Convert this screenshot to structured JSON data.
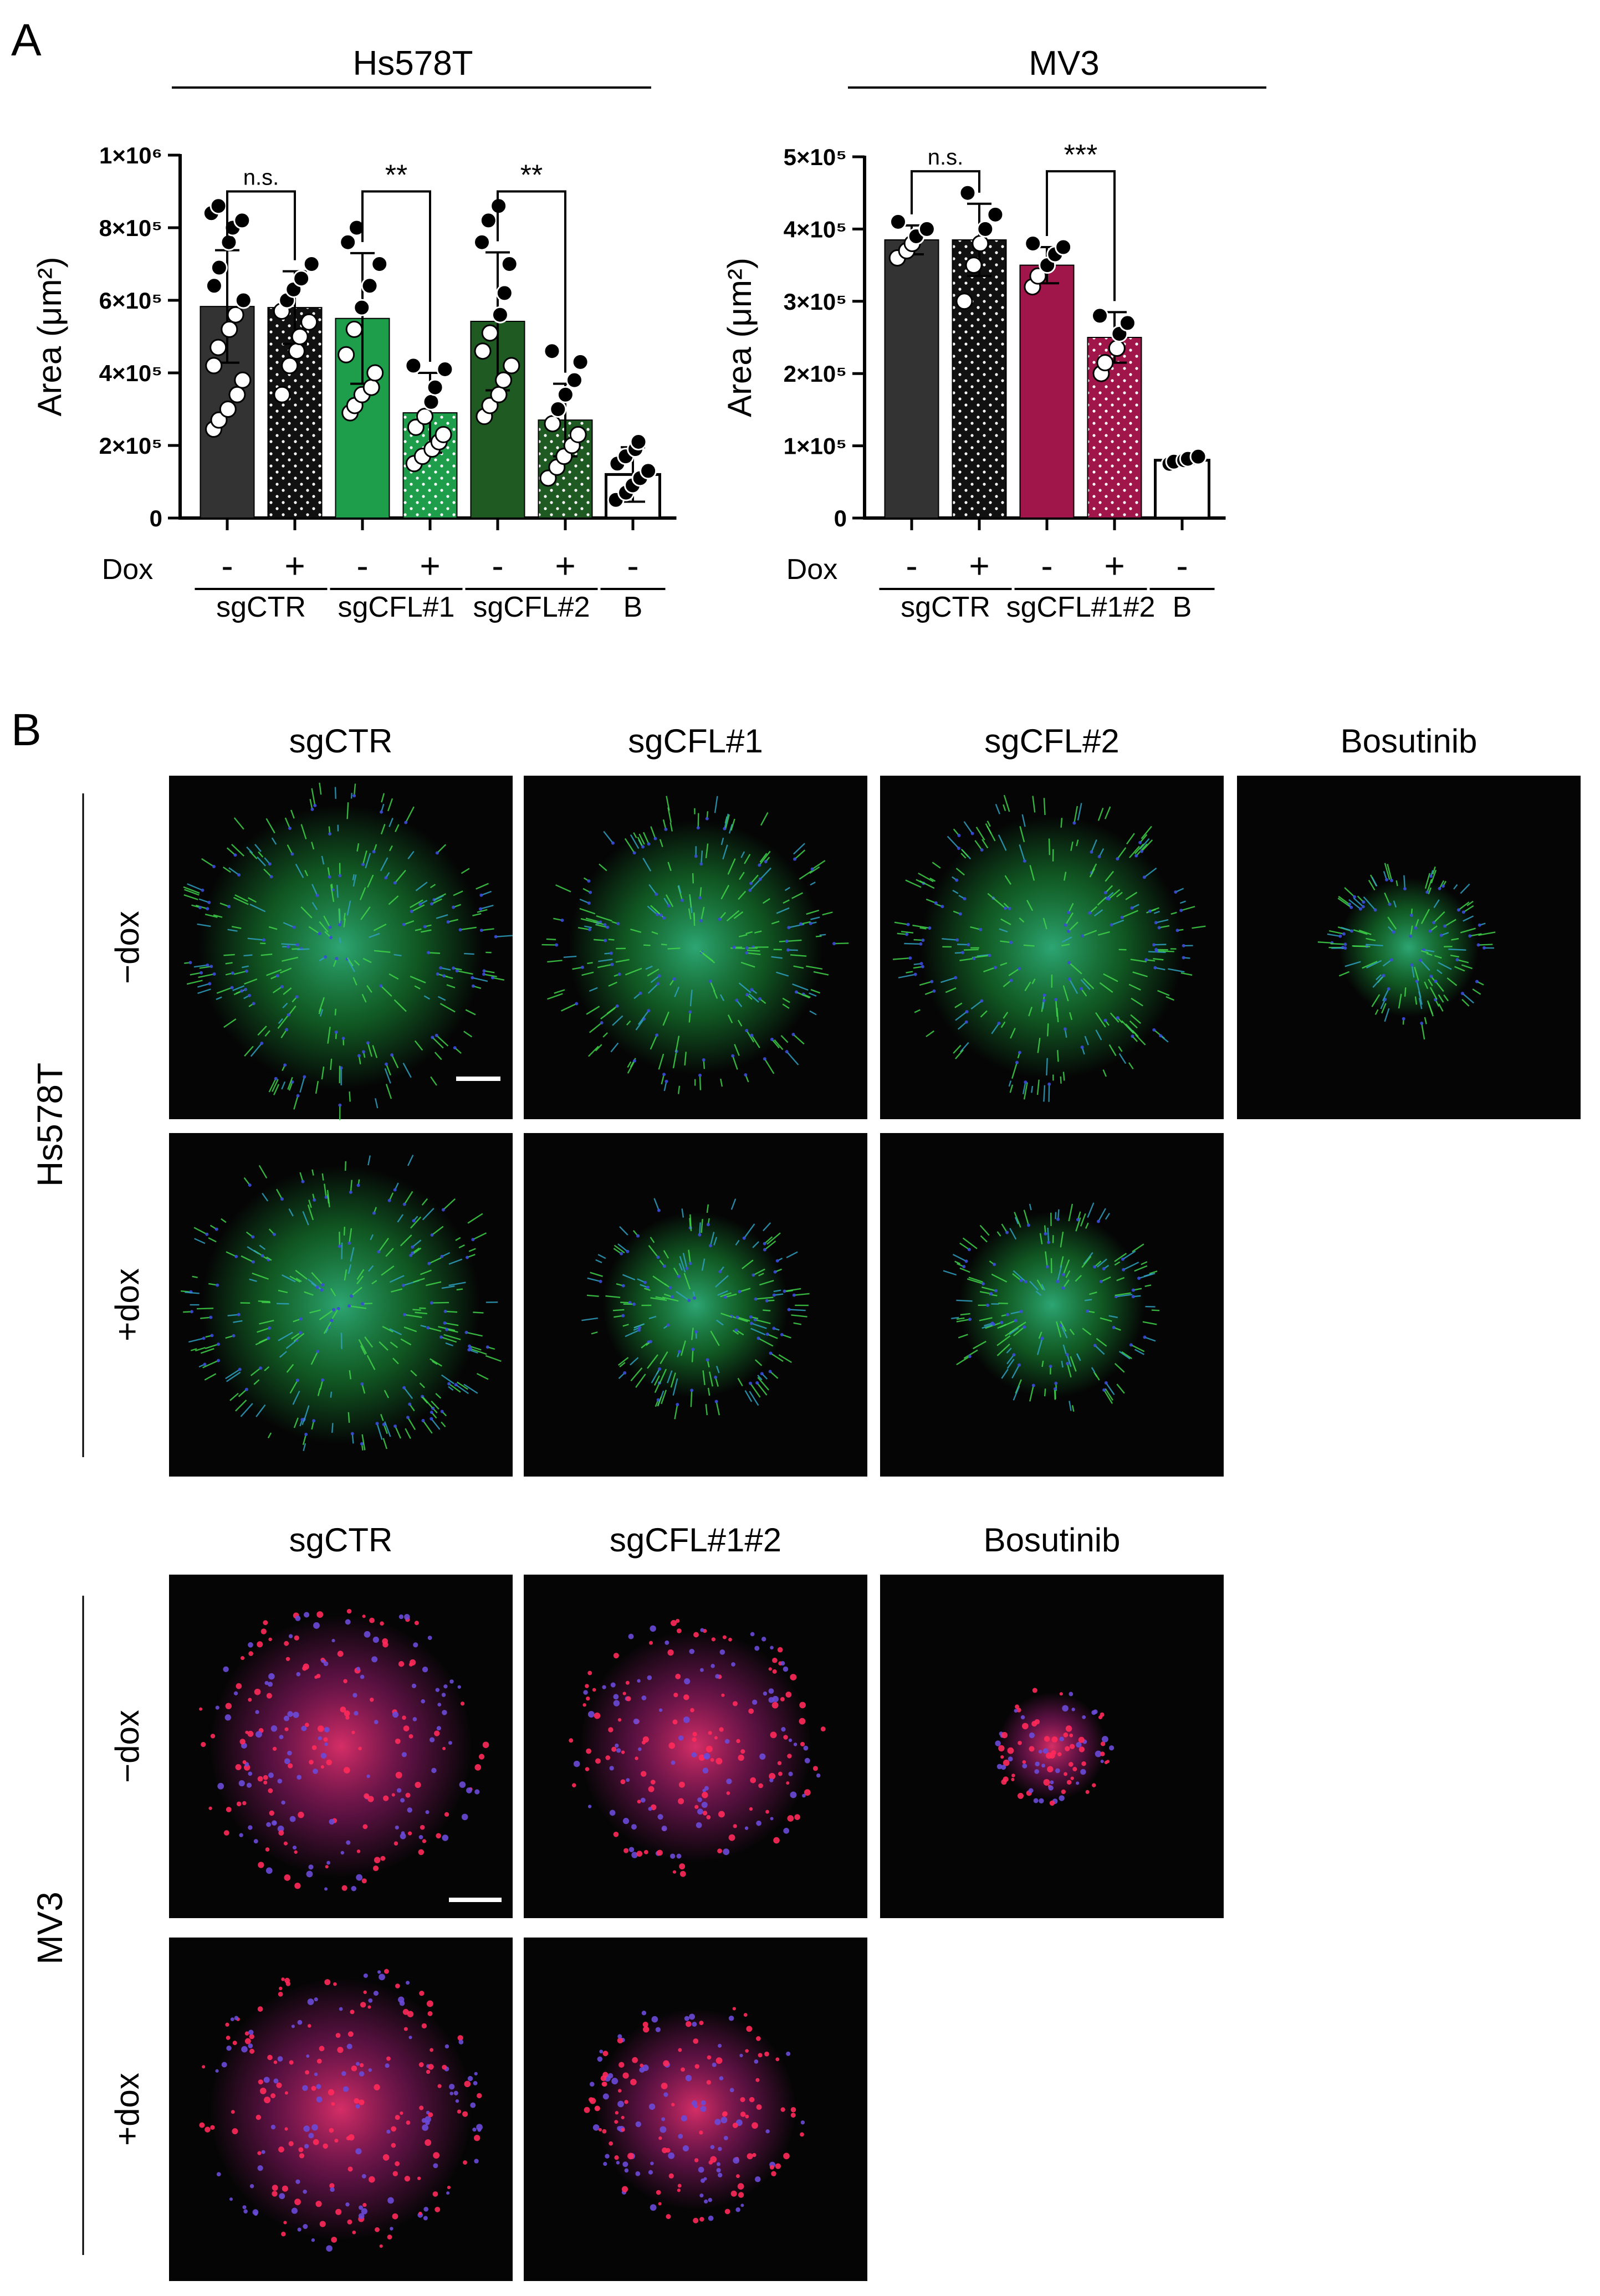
{
  "panel_labels": {
    "a": "A",
    "b": "B"
  },
  "chart_data": [
    {
      "type": "bar",
      "title": "Hs578T",
      "ylabel": "Area (μm²)",
      "ylim": [
        0,
        1000000
      ],
      "yticks": [
        {
          "value": 0,
          "label": "0"
        },
        {
          "value": 200000,
          "label": "2×10⁵"
        },
        {
          "value": 400000,
          "label": "4×10⁵"
        },
        {
          "value": 600000,
          "label": "6×10⁵"
        },
        {
          "value": 800000,
          "label": "8×10⁵"
        },
        {
          "value": 1000000,
          "label": "1×10⁶"
        }
      ],
      "dox_label": "Dox",
      "categories": [
        {
          "dox": "-",
          "group": "sgCTR",
          "value": 583000,
          "sd": 155000,
          "color": "#333333",
          "pattern": "solid",
          "points": [
            245000,
            270000,
            300000,
            340000,
            380000,
            420000,
            470000,
            520000,
            560000,
            600000,
            640000,
            690000,
            760000,
            800000,
            820000,
            840000,
            860000
          ]
        },
        {
          "dox": "+",
          "group": "sgCTR",
          "value": 580000,
          "sd": 100000,
          "color": "#111111",
          "pattern": "dots",
          "points": [
            340000,
            420000,
            460000,
            500000,
            540000,
            570000,
            600000,
            630000,
            660000,
            700000
          ]
        },
        {
          "dox": "-",
          "group": "sgCFL#1",
          "value": 550000,
          "sd": 180000,
          "color": "#1e9e4a",
          "pattern": "solid",
          "points": [
            290000,
            310000,
            340000,
            360000,
            400000,
            450000,
            520000,
            580000,
            640000,
            700000,
            760000,
            800000
          ]
        },
        {
          "dox": "+",
          "group": "sgCFL#1",
          "value": 290000,
          "sd": 110000,
          "color": "#1e9e4a",
          "pattern": "dots",
          "points": [
            150000,
            170000,
            190000,
            210000,
            230000,
            250000,
            280000,
            320000,
            360000,
            410000,
            420000
          ]
        },
        {
          "dox": "-",
          "group": "sgCFL#2",
          "value": 542000,
          "sd": 190000,
          "color": "#1f5a22",
          "pattern": "solid",
          "points": [
            280000,
            310000,
            340000,
            380000,
            420000,
            460000,
            510000,
            560000,
            620000,
            700000,
            760000,
            820000,
            860000
          ]
        },
        {
          "dox": "+",
          "group": "sgCFL#2",
          "value": 270000,
          "sd": 100000,
          "color": "#1f5a22",
          "pattern": "dots",
          "points": [
            110000,
            140000,
            170000,
            200000,
            230000,
            260000,
            300000,
            340000,
            380000,
            430000,
            460000
          ]
        },
        {
          "dox": "-",
          "group": "B",
          "value": 120000,
          "sd": 75000,
          "color": "#ffffff",
          "pattern": "open",
          "points": [
            50000,
            70000,
            90000,
            110000,
            130000,
            150000,
            170000,
            190000,
            210000
          ]
        }
      ],
      "groups": [
        {
          "label": "sgCTR",
          "from": 0,
          "to": 1
        },
        {
          "label": "sgCFL#1",
          "from": 2,
          "to": 3
        },
        {
          "label": "sgCFL#2",
          "from": 4,
          "to": 5
        },
        {
          "label": "B",
          "from": 6,
          "to": 6
        }
      ],
      "significance": [
        {
          "from": 0,
          "to": 1,
          "label": "n.s.",
          "y": 900000
        },
        {
          "from": 2,
          "to": 3,
          "label": "**",
          "y": 900000
        },
        {
          "from": 4,
          "to": 5,
          "label": "**",
          "y": 900000
        }
      ]
    },
    {
      "type": "bar",
      "title": "MV3",
      "ylabel": "Area (μm²)",
      "ylim": [
        0,
        500000
      ],
      "yticks": [
        {
          "value": 0,
          "label": "0"
        },
        {
          "value": 100000,
          "label": "1×10⁵"
        },
        {
          "value": 200000,
          "label": "2×10⁵"
        },
        {
          "value": 300000,
          "label": "3×10⁵"
        },
        {
          "value": 400000,
          "label": "4×10⁵"
        },
        {
          "value": 500000,
          "label": "5×10⁵"
        }
      ],
      "dox_label": "Dox",
      "categories": [
        {
          "dox": "-",
          "group": "sgCTR",
          "value": 385000,
          "sd": 20000,
          "color": "#333333",
          "pattern": "solid",
          "points": [
            360000,
            370000,
            380000,
            390000,
            400000,
            410000
          ]
        },
        {
          "dox": "+",
          "group": "sgCTR",
          "value": 385000,
          "sd": 50000,
          "color": "#111111",
          "pattern": "dots",
          "points": [
            300000,
            350000,
            380000,
            400000,
            420000,
            450000
          ]
        },
        {
          "dox": "-",
          "group": "sgCFL#1#2",
          "value": 350000,
          "sd": 25000,
          "color": "#a0154a",
          "pattern": "solid",
          "points": [
            320000,
            335000,
            350000,
            365000,
            375000,
            380000
          ]
        },
        {
          "dox": "+",
          "group": "sgCFL#1#2",
          "value": 250000,
          "sd": 35000,
          "color": "#a0154a",
          "pattern": "dots",
          "points": [
            200000,
            215000,
            235000,
            255000,
            270000,
            280000
          ]
        },
        {
          "dox": "-",
          "group": "B",
          "value": 80000,
          "sd": 5000,
          "color": "#ffffff",
          "pattern": "open",
          "points": [
            75000,
            78000,
            80000,
            82000,
            85000
          ]
        }
      ],
      "groups": [
        {
          "label": "sgCTR",
          "from": 0,
          "to": 1
        },
        {
          "label": "sgCFL#1#2",
          "from": 2,
          "to": 3
        },
        {
          "label": "B",
          "from": 4,
          "to": 4
        }
      ],
      "significance": [
        {
          "from": 0,
          "to": 1,
          "label": "n.s.",
          "y": 480000
        },
        {
          "from": 2,
          "to": 3,
          "label": "***",
          "y": 480000
        }
      ]
    }
  ],
  "panel_b": {
    "hs578t": {
      "cell_line": "Hs578T",
      "column_headers": [
        "sgCTR",
        "sgCFL#1",
        "sgCFL#2",
        "Bosutinib"
      ],
      "row_labels": [
        "−dox",
        "+dox"
      ],
      "stain": "green",
      "images": [
        {
          "row": 0,
          "col": 0,
          "spread": 0.92
        },
        {
          "row": 0,
          "col": 1,
          "spread": 0.82
        },
        {
          "row": 0,
          "col": 2,
          "spread": 0.85
        },
        {
          "row": 0,
          "col": 3,
          "spread": 0.45
        },
        {
          "row": 1,
          "col": 0,
          "spread": 0.9
        },
        {
          "row": 1,
          "col": 1,
          "spread": 0.6
        },
        {
          "row": 1,
          "col": 2,
          "spread": 0.6
        }
      ]
    },
    "mv3": {
      "cell_line": "MV3",
      "column_headers": [
        "sgCTR",
        "sgCFL#1#2",
        "Bosutinib"
      ],
      "row_labels": [
        "−dox",
        "+dox"
      ],
      "stain": "red",
      "images": [
        {
          "row": 0,
          "col": 0,
          "spread": 0.85
        },
        {
          "row": 0,
          "col": 1,
          "spread": 0.75
        },
        {
          "row": 0,
          "col": 2,
          "spread": 0.35
        },
        {
          "row": 1,
          "col": 0,
          "spread": 0.85
        },
        {
          "row": 1,
          "col": 1,
          "spread": 0.65
        }
      ]
    }
  }
}
